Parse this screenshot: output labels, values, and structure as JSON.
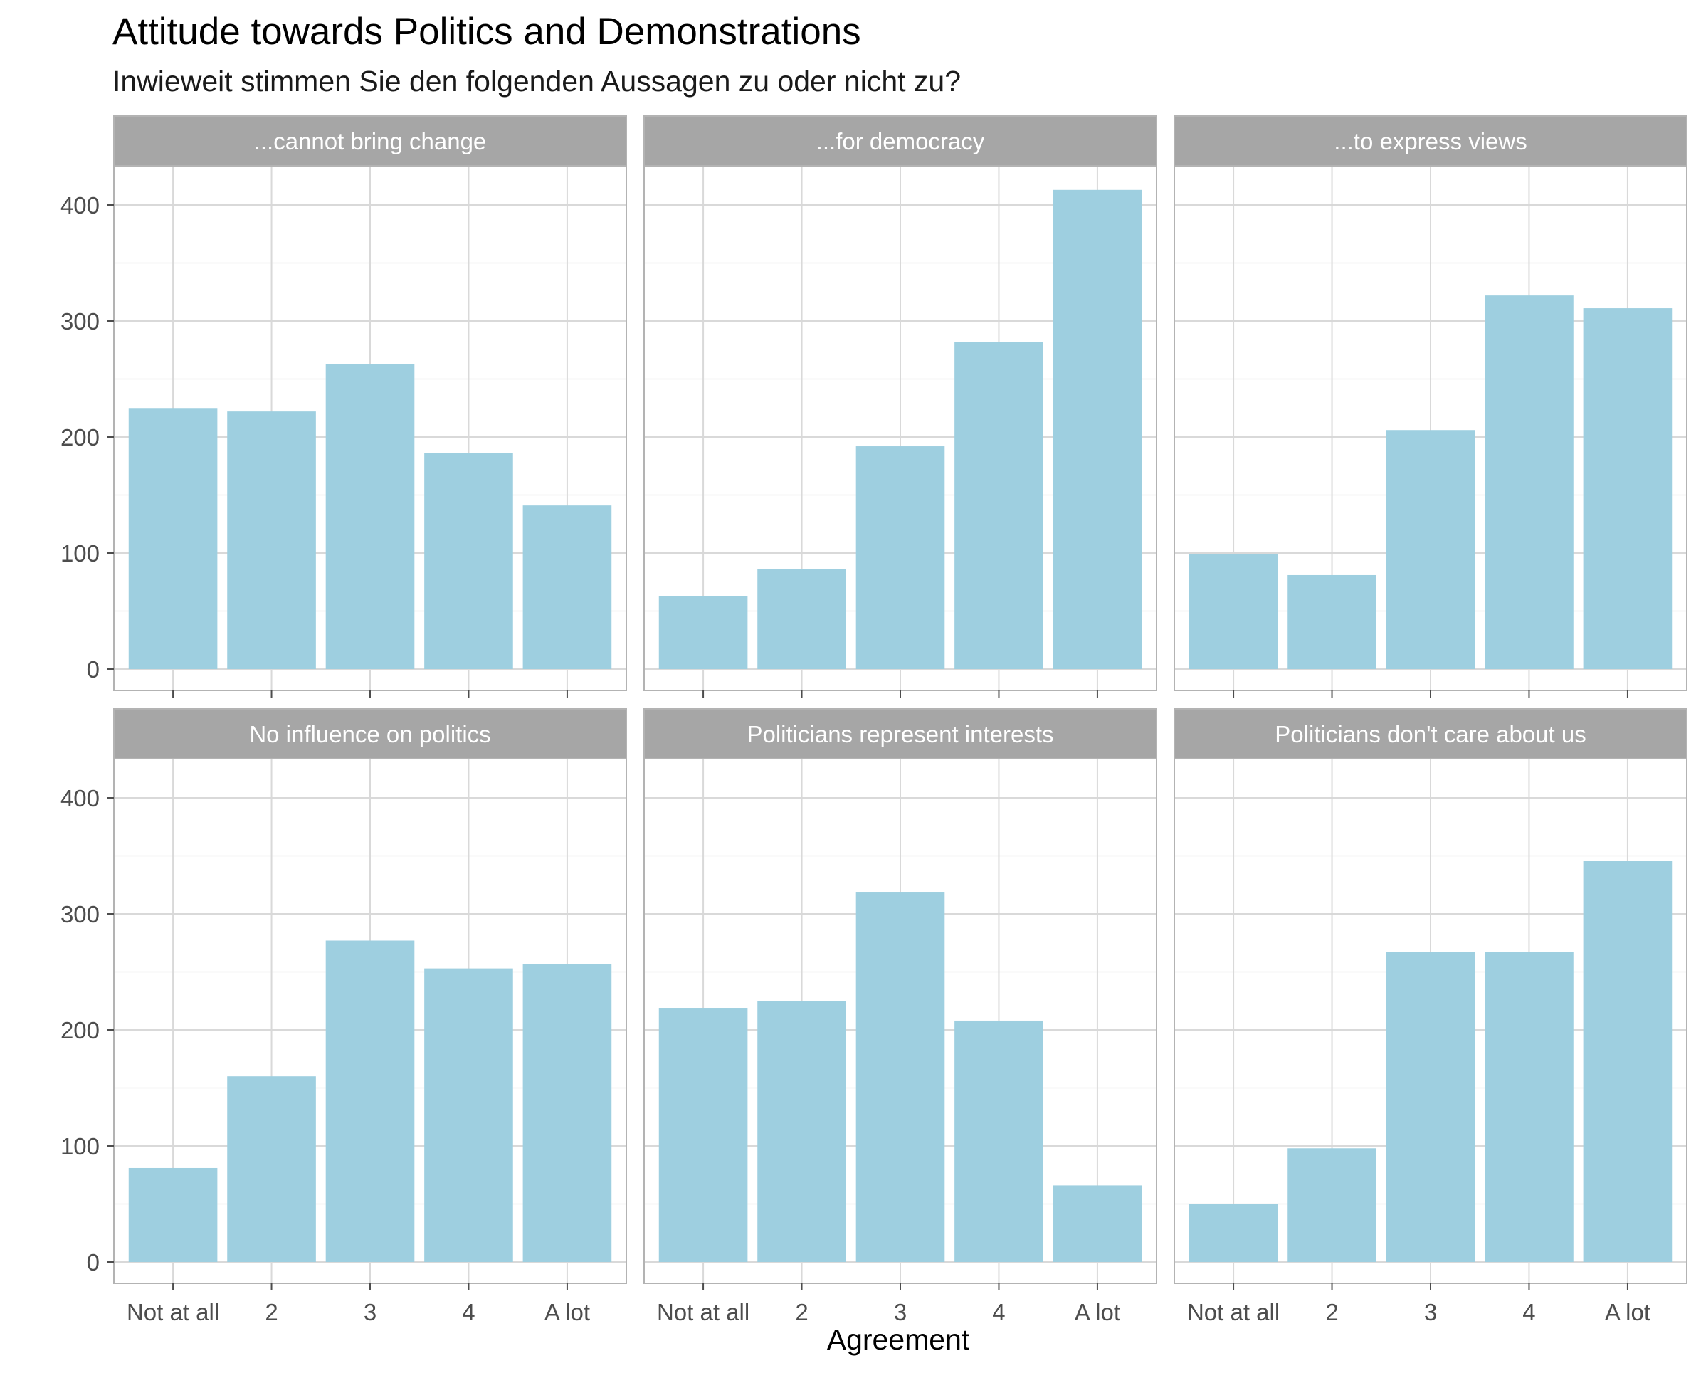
{
  "chart_data": {
    "type": "bar",
    "title": "Attitude towards Politics and Demonstrations",
    "subtitle": "Inwieweit stimmen Sie den folgenden Aussagen zu oder nicht zu?",
    "xlabel": "Agreement",
    "ylabel": "",
    "categories": [
      "Not at all",
      "2",
      "3",
      "4",
      "A lot"
    ],
    "ylim": [
      0,
      440
    ],
    "yticks": [
      0,
      100,
      200,
      300,
      400
    ],
    "grid": true,
    "facets": [
      {
        "label": "...cannot bring change",
        "values": [
          225,
          222,
          263,
          186,
          141
        ]
      },
      {
        "label": "...for democracy",
        "values": [
          63,
          86,
          192,
          282,
          413
        ]
      },
      {
        "label": "...to express views",
        "values": [
          99,
          81,
          206,
          322,
          311
        ]
      },
      {
        "label": "No influence on politics",
        "values": [
          81,
          160,
          277,
          253,
          257
        ]
      },
      {
        "label": "Politicians represent interests",
        "values": [
          219,
          225,
          319,
          208,
          66
        ]
      },
      {
        "label": "Politicians don't care about us",
        "values": [
          50,
          98,
          267,
          267,
          346
        ]
      }
    ],
    "colors": {
      "bar": "#9ecfe0",
      "strip": "#a6a6a6",
      "panel_border": "#b3b3b3",
      "grid_major": "#d9d9d9",
      "grid_minor": "#ededed"
    }
  }
}
